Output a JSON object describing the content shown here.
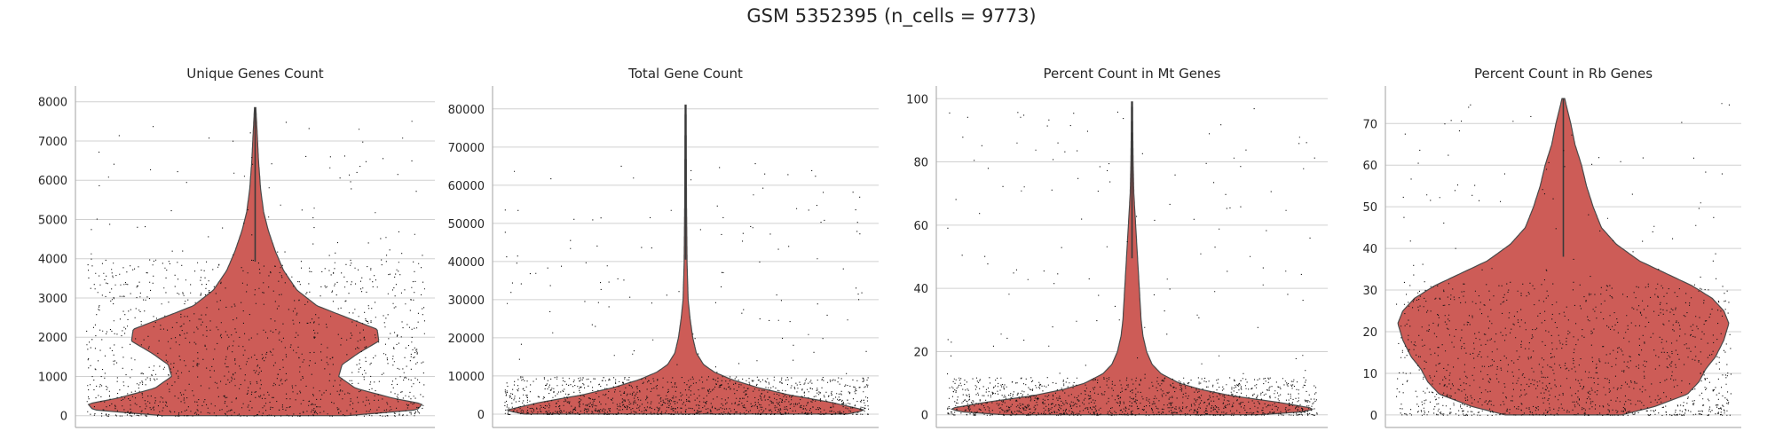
{
  "figure": {
    "title": "GSM 5352395 (n_cells = 9773)"
  },
  "chart_data": [
    {
      "type": "violin",
      "title": "Unique Genes Count",
      "ylim": [
        -300,
        8400
      ],
      "yticks": [
        0,
        1000,
        2000,
        3000,
        4000,
        5000,
        6000,
        7000,
        8000
      ],
      "max": 7850,
      "profile": [
        [
          0,
          0.55
        ],
        [
          150,
          0.97
        ],
        [
          300,
          1.0
        ],
        [
          450,
          0.82
        ],
        [
          700,
          0.6
        ],
        [
          1000,
          0.5
        ],
        [
          1300,
          0.52
        ],
        [
          1600,
          0.62
        ],
        [
          1900,
          0.74
        ],
        [
          2200,
          0.73
        ],
        [
          2500,
          0.55
        ],
        [
          2800,
          0.37
        ],
        [
          3200,
          0.25
        ],
        [
          3700,
          0.17
        ],
        [
          4200,
          0.12
        ],
        [
          4700,
          0.08
        ],
        [
          5200,
          0.05
        ],
        [
          5800,
          0.032
        ],
        [
          6500,
          0.02
        ],
        [
          7200,
          0.012
        ],
        [
          7850,
          0.004
        ]
      ],
      "points": {
        "dense_max": 4000,
        "sparse_max": 7800
      },
      "color": "#cd5c57"
    },
    {
      "type": "violin",
      "title": "Total Gene Count",
      "ylim": [
        -3500,
        86000
      ],
      "yticks": [
        0,
        10000,
        20000,
        30000,
        40000,
        50000,
        60000,
        70000,
        80000
      ],
      "max": 81000,
      "profile": [
        [
          0,
          0.9
        ],
        [
          1000,
          1.0
        ],
        [
          3000,
          0.82
        ],
        [
          5000,
          0.58
        ],
        [
          7000,
          0.4
        ],
        [
          9000,
          0.26
        ],
        [
          11000,
          0.16
        ],
        [
          13000,
          0.1
        ],
        [
          16000,
          0.06
        ],
        [
          20000,
          0.04
        ],
        [
          25000,
          0.025
        ],
        [
          30000,
          0.014
        ],
        [
          40000,
          0.008
        ],
        [
          55000,
          0.005
        ],
        [
          70000,
          0.004
        ],
        [
          81000,
          0.003
        ]
      ],
      "points": {
        "dense_max": 10000,
        "sparse_max": 66000
      },
      "color": "#cd5c57"
    },
    {
      "type": "violin",
      "title": "Percent Count in Mt Genes",
      "ylim": [
        -4,
        104
      ],
      "yticks": [
        0,
        20,
        40,
        60,
        80,
        100
      ],
      "max": 99,
      "profile": [
        [
          0,
          0.7
        ],
        [
          1,
          0.95
        ],
        [
          2,
          1.0
        ],
        [
          4,
          0.8
        ],
        [
          6,
          0.55
        ],
        [
          8,
          0.38
        ],
        [
          10,
          0.26
        ],
        [
          13,
          0.16
        ],
        [
          16,
          0.11
        ],
        [
          20,
          0.08
        ],
        [
          25,
          0.06
        ],
        [
          30,
          0.05
        ],
        [
          40,
          0.04
        ],
        [
          50,
          0.03
        ],
        [
          60,
          0.02
        ],
        [
          70,
          0.01
        ],
        [
          80,
          0.006
        ],
        [
          90,
          0.004
        ],
        [
          99,
          0.003
        ]
      ],
      "points": {
        "dense_max": 12,
        "sparse_max": 98
      },
      "color": "#cd5c57"
    },
    {
      "type": "violin",
      "title": "Percent Count in Rb Genes",
      "ylim": [
        -3,
        79
      ],
      "yticks": [
        0,
        10,
        20,
        30,
        40,
        50,
        60,
        70
      ],
      "max": 76,
      "profile": [
        [
          0,
          0.35
        ],
        [
          2,
          0.55
        ],
        [
          5,
          0.75
        ],
        [
          8,
          0.82
        ],
        [
          11,
          0.86
        ],
        [
          14,
          0.92
        ],
        [
          18,
          0.97
        ],
        [
          22,
          1.0
        ],
        [
          25,
          0.97
        ],
        [
          28,
          0.9
        ],
        [
          31,
          0.78
        ],
        [
          34,
          0.62
        ],
        [
          37,
          0.46
        ],
        [
          41,
          0.32
        ],
        [
          45,
          0.23
        ],
        [
          50,
          0.18
        ],
        [
          55,
          0.14
        ],
        [
          60,
          0.11
        ],
        [
          65,
          0.07
        ],
        [
          70,
          0.045
        ],
        [
          74,
          0.02
        ],
        [
          76,
          0.008
        ]
      ],
      "points": {
        "dense_max": 32,
        "sparse_max": 75
      },
      "color": "#cd5c57"
    }
  ]
}
